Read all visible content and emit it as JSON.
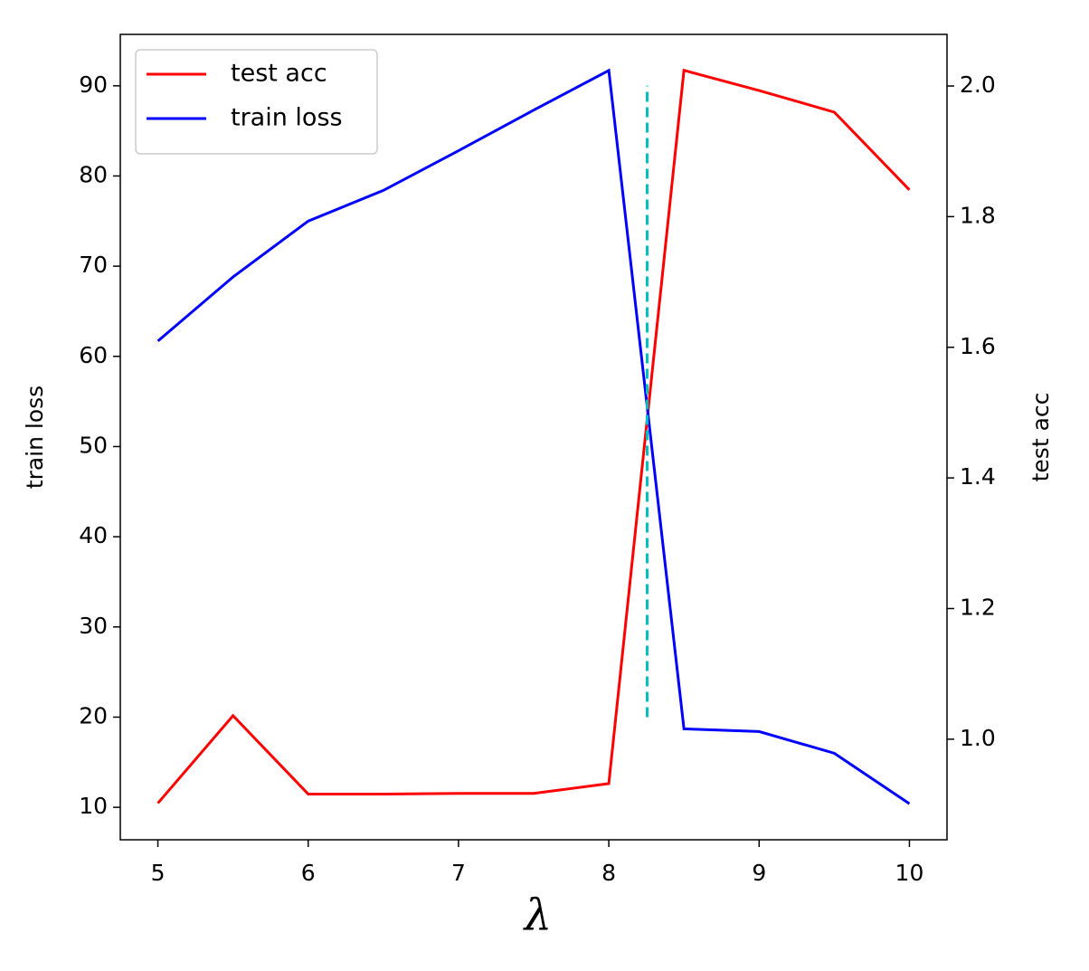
{
  "chart_data": {
    "type": "line",
    "xlabel": "λ",
    "ylabel": "train loss",
    "y2label": "test acc",
    "x": [
      5,
      5.5,
      6,
      6.5,
      7,
      7.5,
      8,
      8.5,
      9,
      9.5,
      10
    ],
    "series": [
      {
        "name": "test acc",
        "color": "#ff0000",
        "axis": "y2",
        "values": [
          0.902,
          1.036,
          0.916,
          0.916,
          0.917,
          0.917,
          0.932,
          2.024,
          1.993,
          1.96,
          1.841
        ]
      },
      {
        "name": "train loss",
        "color": "#0000ff",
        "values": [
          61.7,
          68.8,
          75.0,
          78.4,
          82.8,
          87.3,
          91.7,
          18.7,
          18.4,
          16.0,
          10.4
        ]
      }
    ],
    "vline": {
      "x": 8.255,
      "ymin": 20,
      "ymax": 90,
      "color": "#00bfbf"
    },
    "xlim": [
      4.75,
      10.25
    ],
    "xticks": [
      5,
      6,
      7,
      8,
      9,
      10
    ],
    "ylim": [
      6.4,
      95.7
    ],
    "yticks": [
      10,
      20,
      30,
      40,
      50,
      60,
      70,
      80,
      90
    ],
    "y2lim": [
      0.846,
      2.079
    ],
    "y2ticks": [
      {
        "value": 1,
        "label": "1.0"
      },
      1.2,
      1.4,
      1.6,
      1.8,
      {
        "value": 2,
        "label": "2.0"
      }
    ],
    "legend": "upper left",
    "grid": false
  }
}
